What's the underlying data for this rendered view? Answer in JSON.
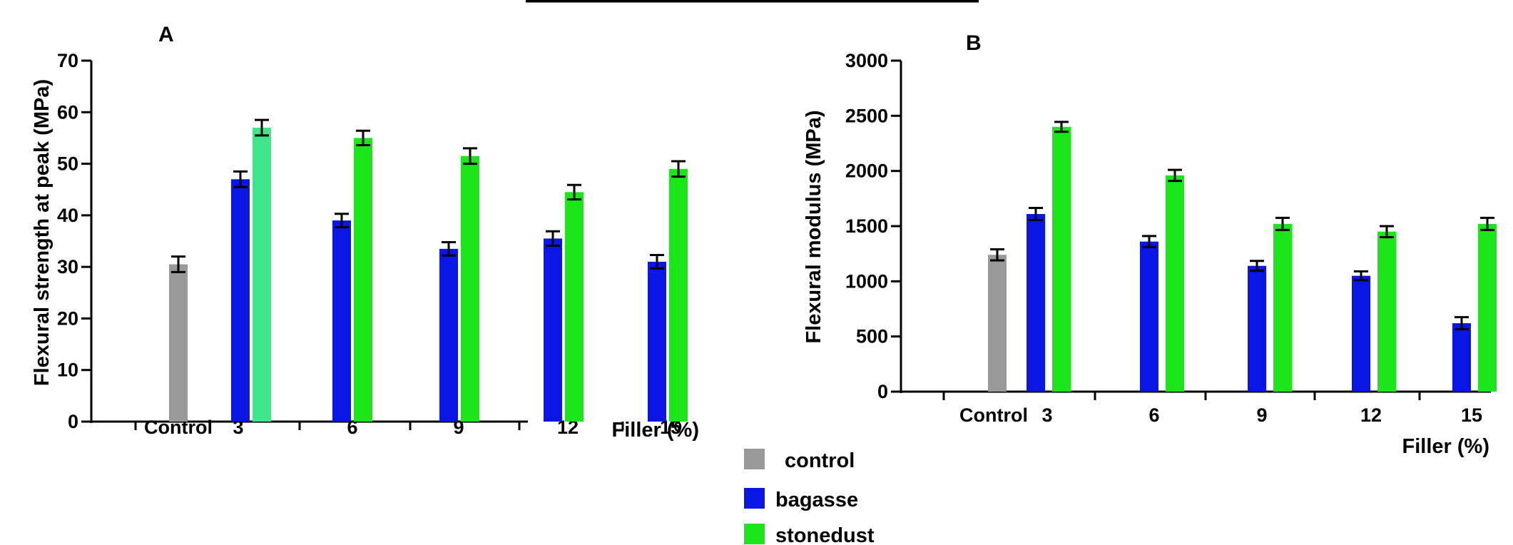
{
  "chart_data": [
    {
      "type": "bar",
      "panel_label": "A",
      "xlabel": "Filler (%)",
      "ylabel": "Flexural strength at peak (MPa)",
      "ylim": [
        0,
        70
      ],
      "yticks": [
        0,
        10,
        20,
        30,
        40,
        50,
        60,
        70
      ],
      "categories": [
        "Control",
        "3",
        "6",
        "9",
        "12",
        "15"
      ],
      "series": [
        {
          "name": "control",
          "values": [
            30.5,
            null,
            null,
            null,
            null,
            null
          ],
          "errors": [
            1.5,
            null,
            null,
            null,
            null,
            null
          ]
        },
        {
          "name": "bagasse",
          "values": [
            null,
            47,
            39,
            33.5,
            35.5,
            31
          ],
          "errors": [
            null,
            1.5,
            1.3,
            1.3,
            1.4,
            1.3
          ]
        },
        {
          "name": "stonedust",
          "values": [
            null,
            57,
            55,
            51.5,
            44.5,
            49
          ],
          "errors": [
            null,
            1.5,
            1.4,
            1.5,
            1.4,
            1.5
          ]
        }
      ]
    },
    {
      "type": "bar",
      "panel_label": "B",
      "xlabel": "Filler (%)",
      "ylabel": "Flexural modulus (MPa)",
      "ylim": [
        0,
        3000
      ],
      "yticks": [
        0,
        500,
        1000,
        1500,
        2000,
        2500,
        3000
      ],
      "categories": [
        "Control",
        "3",
        "6",
        "9",
        "12",
        "15"
      ],
      "series": [
        {
          "name": "control",
          "values": [
            1240,
            null,
            null,
            null,
            null,
            null
          ],
          "errors": [
            50,
            null,
            null,
            null,
            null,
            null
          ]
        },
        {
          "name": "bagasse",
          "values": [
            null,
            1610,
            1360,
            1140,
            1050,
            620
          ],
          "errors": [
            null,
            55,
            50,
            45,
            40,
            55
          ]
        },
        {
          "name": "stonedust",
          "values": [
            null,
            2400,
            1960,
            1520,
            1450,
            1520
          ],
          "errors": [
            null,
            45,
            50,
            55,
            50,
            55
          ]
        }
      ]
    }
  ],
  "legend": {
    "placement": "bottom-center",
    "items": [
      {
        "label": "control",
        "color": "#999999"
      },
      {
        "label": "bagasse",
        "color": "#0a16e6"
      },
      {
        "label": "stonedust",
        "color": "#1ae61a"
      }
    ]
  },
  "colors": {
    "control": "#999999",
    "bagasse": "#0a16e6",
    "stonedust": "#1ae61a",
    "stonedust_3_panelA": "#3ee68c"
  }
}
